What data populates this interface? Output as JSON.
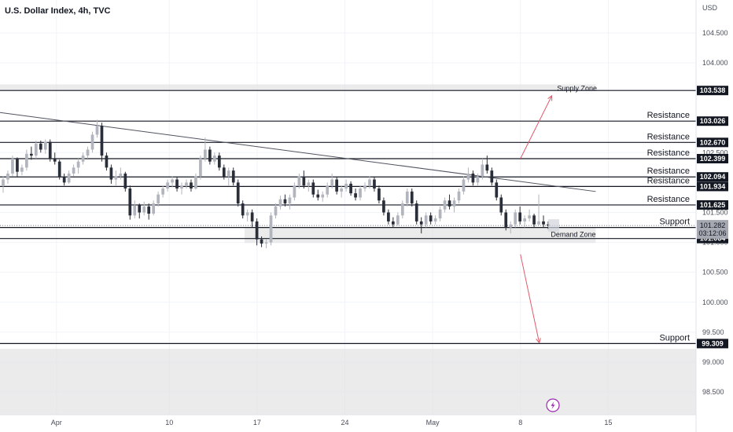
{
  "chart_data": {
    "type": "candlestick",
    "title": "U.S. Dollar Index, 4h, TVC",
    "currency": "USD",
    "y_ticks": [
      98.5,
      99.0,
      99.5,
      100.0,
      100.5,
      101.0,
      101.5,
      102.5,
      104.0,
      104.5
    ],
    "y_tick_labels": [
      "98.500",
      "99.000",
      "99.500",
      "100.000",
      "100.500",
      "101.000",
      "101.500",
      "102.500",
      "104.000",
      "104.500"
    ],
    "ylim": [
      98.12,
      105.05
    ],
    "x_ticks": [
      {
        "label": "Apr",
        "date": "2025-04-01"
      },
      {
        "label": "10",
        "date": "2025-04-10"
      },
      {
        "label": "17",
        "date": "2025-04-17"
      },
      {
        "label": "24",
        "date": "2025-04-24"
      },
      {
        "label": "May",
        "date": "2025-05-01"
      },
      {
        "label": "8",
        "date": "2025-05-08"
      },
      {
        "label": "15",
        "date": "2025-05-15"
      }
    ],
    "xlim": [
      "2025-03-27T12:00",
      "2025-05-22T00:00"
    ],
    "levels": [
      {
        "value": 103.538,
        "label": "103.538",
        "annotation": "",
        "style": "dark"
      },
      {
        "value": 103.026,
        "label": "103.026",
        "annotation": "Resistance",
        "style": "dark"
      },
      {
        "value": 102.67,
        "label": "102.670",
        "annotation": "Resistance",
        "style": "dark"
      },
      {
        "value": 102.399,
        "label": "102.399",
        "annotation": "Resistance",
        "style": "dark"
      },
      {
        "value": 102.094,
        "label": "102.094",
        "annotation": "Resistance",
        "style": "dark"
      },
      {
        "value": 101.934,
        "label": "101.934",
        "annotation": "Resistance",
        "style": "dark"
      },
      {
        "value": 101.625,
        "label": "101.625",
        "annotation": "Resistance",
        "style": "dark"
      },
      {
        "value": 101.249,
        "label": "101.249",
        "annotation": "Support",
        "style": "dark"
      },
      {
        "value": 101.064,
        "label": "101.064",
        "annotation": "",
        "style": "dark"
      },
      {
        "value": 99.309,
        "label": "99.309",
        "annotation": "Support",
        "style": "dark"
      }
    ],
    "current_price": {
      "value": 101.282,
      "label": "101.282",
      "countdown": "03:12:06"
    },
    "zones": [
      {
        "name": "Supply Zone",
        "top": 103.64,
        "bottom": 103.53,
        "from": "2025-03-27T12:00",
        "to": "2025-05-14T00:00"
      },
      {
        "name": "Demand Zone",
        "top": 101.25,
        "bottom": 100.99,
        "from": "2025-04-16T00:00",
        "to": "2025-05-14T00:00"
      },
      {
        "name": "",
        "top": 99.22,
        "bottom": 98.12,
        "from": "2025-03-27T12:00",
        "to": "2025-05-22T00:00"
      }
    ],
    "trendline": {
      "from": {
        "date": "2025-03-27T12:00",
        "value": 103.17
      },
      "to": {
        "date": "2025-05-14T00:00",
        "value": 101.85
      }
    },
    "arrows": [
      {
        "from": {
          "date": "2025-05-08T00:00",
          "value": 102.4
        },
        "to": {
          "date": "2025-05-10T12:00",
          "value": 103.45
        }
      },
      {
        "from": {
          "date": "2025-05-08T00:00",
          "value": 100.8
        },
        "to": {
          "date": "2025-05-09T12:00",
          "value": 99.32
        }
      }
    ],
    "candles": [
      [
        101.95,
        102.1,
        101.83,
        102.05
      ],
      [
        102.05,
        102.2,
        101.98,
        102.15
      ],
      [
        102.15,
        102.45,
        102.1,
        102.4
      ],
      [
        102.4,
        102.42,
        102.1,
        102.18
      ],
      [
        102.18,
        102.3,
        102.12,
        102.25
      ],
      [
        102.25,
        102.55,
        102.2,
        102.48
      ],
      [
        102.48,
        102.6,
        102.38,
        102.45
      ],
      [
        102.45,
        102.7,
        102.4,
        102.65
      ],
      [
        102.65,
        102.7,
        102.5,
        102.55
      ],
      [
        102.55,
        102.72,
        102.48,
        102.68
      ],
      [
        102.68,
        102.72,
        102.35,
        102.4
      ],
      [
        102.4,
        102.5,
        102.3,
        102.35
      ],
      [
        102.35,
        102.38,
        102.05,
        102.1
      ],
      [
        102.1,
        102.15,
        101.95,
        102.0
      ],
      [
        102.0,
        102.2,
        101.98,
        102.15
      ],
      [
        102.15,
        102.3,
        102.1,
        102.25
      ],
      [
        102.25,
        102.4,
        102.15,
        102.35
      ],
      [
        102.35,
        102.5,
        102.3,
        102.45
      ],
      [
        102.45,
        102.6,
        102.4,
        102.55
      ],
      [
        102.55,
        102.85,
        102.5,
        102.8
      ],
      [
        102.8,
        103.05,
        102.75,
        102.95
      ],
      [
        102.95,
        103.0,
        102.35,
        102.45
      ],
      [
        102.45,
        102.5,
        102.2,
        102.25
      ],
      [
        102.25,
        102.3,
        101.98,
        102.05
      ],
      [
        102.05,
        102.2,
        101.95,
        102.1
      ],
      [
        102.1,
        102.25,
        102.05,
        102.15
      ],
      [
        102.15,
        102.18,
        101.85,
        101.9
      ],
      [
        101.9,
        101.95,
        101.38,
        101.45
      ],
      [
        101.45,
        101.7,
        101.4,
        101.62
      ],
      [
        101.62,
        101.65,
        101.4,
        101.5
      ],
      [
        101.5,
        101.68,
        101.45,
        101.6
      ],
      [
        101.6,
        101.65,
        101.38,
        101.48
      ],
      [
        101.48,
        101.7,
        101.45,
        101.65
      ],
      [
        101.65,
        101.85,
        101.6,
        101.8
      ],
      [
        101.8,
        101.95,
        101.75,
        101.9
      ],
      [
        101.9,
        102.05,
        101.85,
        102.0
      ],
      [
        102.0,
        102.1,
        101.92,
        102.05
      ],
      [
        102.05,
        102.1,
        101.85,
        101.9
      ],
      [
        101.9,
        102.0,
        101.8,
        101.95
      ],
      [
        101.95,
        102.05,
        101.9,
        102.0
      ],
      [
        102.0,
        102.05,
        101.85,
        101.9
      ],
      [
        101.9,
        102.15,
        101.88,
        102.1
      ],
      [
        102.1,
        102.45,
        102.05,
        102.4
      ],
      [
        102.4,
        102.75,
        102.35,
        102.55
      ],
      [
        102.55,
        102.6,
        102.3,
        102.35
      ],
      [
        102.35,
        102.5,
        102.3,
        102.45
      ],
      [
        102.45,
        102.5,
        102.2,
        102.25
      ],
      [
        102.25,
        102.3,
        102.05,
        102.1
      ],
      [
        102.1,
        102.25,
        101.95,
        102.2
      ],
      [
        102.2,
        102.25,
        101.95,
        102.0
      ],
      [
        102.0,
        102.05,
        101.6,
        101.65
      ],
      [
        101.65,
        101.7,
        101.4,
        101.45
      ],
      [
        101.45,
        101.55,
        101.35,
        101.5
      ],
      [
        101.5,
        101.55,
        101.25,
        101.35
      ],
      [
        101.35,
        101.4,
        100.95,
        101.05
      ],
      [
        101.05,
        101.1,
        100.92,
        100.98
      ],
      [
        100.98,
        101.05,
        100.9,
        101.0
      ],
      [
        101.0,
        101.5,
        100.95,
        101.45
      ],
      [
        101.45,
        101.65,
        101.4,
        101.6
      ],
      [
        101.6,
        101.78,
        101.55,
        101.72
      ],
      [
        101.72,
        101.8,
        101.6,
        101.65
      ],
      [
        101.65,
        101.8,
        101.55,
        101.75
      ],
      [
        101.75,
        102.0,
        101.7,
        101.95
      ],
      [
        101.95,
        102.15,
        101.9,
        102.1
      ],
      [
        102.1,
        102.2,
        101.9,
        101.95
      ],
      [
        101.95,
        102.05,
        101.85,
        102.0
      ],
      [
        102.0,
        102.05,
        101.75,
        101.8
      ],
      [
        101.8,
        101.88,
        101.7,
        101.75
      ],
      [
        101.75,
        101.85,
        101.68,
        101.8
      ],
      [
        101.8,
        102.0,
        101.75,
        101.95
      ],
      [
        101.95,
        102.15,
        101.9,
        102.05
      ],
      [
        102.05,
        102.1,
        101.8,
        101.85
      ],
      [
        101.85,
        101.95,
        101.75,
        101.9
      ],
      [
        101.9,
        102.05,
        101.85,
        101.98
      ],
      [
        101.98,
        102.02,
        101.78,
        101.82
      ],
      [
        101.82,
        101.9,
        101.7,
        101.75
      ],
      [
        101.75,
        101.95,
        101.7,
        101.9
      ],
      [
        101.9,
        102.0,
        101.85,
        101.95
      ],
      [
        101.95,
        102.1,
        101.9,
        102.05
      ],
      [
        102.05,
        102.1,
        101.85,
        101.9
      ],
      [
        101.9,
        101.95,
        101.65,
        101.7
      ],
      [
        101.7,
        101.75,
        101.45,
        101.5
      ],
      [
        101.5,
        101.55,
        101.3,
        101.35
      ],
      [
        101.35,
        101.42,
        101.25,
        101.3
      ],
      [
        101.3,
        101.5,
        101.28,
        101.45
      ],
      [
        101.45,
        101.7,
        101.4,
        101.65
      ],
      [
        101.65,
        101.9,
        101.6,
        101.85
      ],
      [
        101.85,
        101.9,
        101.6,
        101.65
      ],
      [
        101.65,
        101.7,
        101.3,
        101.35
      ],
      [
        101.35,
        101.42,
        101.15,
        101.3
      ],
      [
        101.3,
        101.5,
        101.25,
        101.45
      ],
      [
        101.45,
        101.5,
        101.3,
        101.35
      ],
      [
        101.35,
        101.45,
        101.3,
        101.4
      ],
      [
        101.4,
        101.6,
        101.35,
        101.55
      ],
      [
        101.55,
        101.75,
        101.5,
        101.7
      ],
      [
        101.7,
        101.8,
        101.55,
        101.6
      ],
      [
        101.6,
        101.75,
        101.5,
        101.7
      ],
      [
        101.7,
        101.9,
        101.65,
        101.85
      ],
      [
        101.85,
        102.1,
        101.8,
        102.05
      ],
      [
        102.05,
        102.25,
        102.0,
        102.15
      ],
      [
        102.15,
        102.2,
        101.95,
        102.0
      ],
      [
        102.0,
        102.15,
        101.95,
        102.1
      ],
      [
        102.1,
        102.4,
        102.05,
        102.3
      ],
      [
        102.3,
        102.45,
        102.15,
        102.2
      ],
      [
        102.2,
        102.25,
        101.95,
        102.0
      ],
      [
        102.0,
        102.05,
        101.7,
        101.75
      ],
      [
        101.75,
        101.8,
        101.45,
        101.5
      ],
      [
        101.5,
        101.55,
        101.2,
        101.25
      ],
      [
        101.25,
        101.35,
        101.15,
        101.3
      ],
      [
        101.3,
        101.55,
        101.25,
        101.5
      ],
      [
        101.5,
        101.6,
        101.3,
        101.35
      ],
      [
        101.35,
        101.45,
        101.25,
        101.4
      ],
      [
        101.4,
        101.55,
        101.35,
        101.45
      ],
      [
        101.45,
        101.48,
        101.25,
        101.3
      ],
      [
        101.3,
        101.8,
        101.28,
        101.35
      ],
      [
        101.35,
        101.45,
        101.25,
        101.3
      ],
      [
        101.3,
        101.35,
        101.22,
        101.28
      ]
    ],
    "grid": true
  }
}
